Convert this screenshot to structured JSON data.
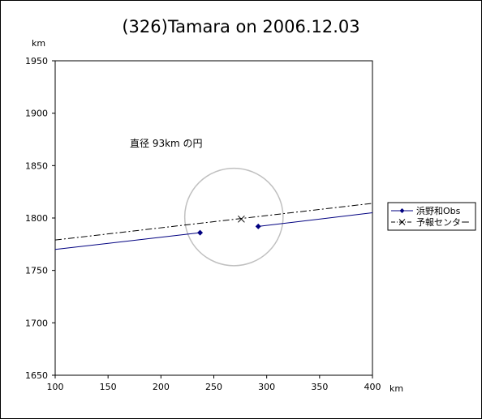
{
  "chart_data": {
    "type": "line",
    "title": "(326)Tamara on 2006.12.03",
    "xlabel": "km",
    "ylabel": "km",
    "xlim": [
      100,
      400
    ],
    "ylim": [
      1650,
      1950
    ],
    "x_ticks": [
      100,
      150,
      200,
      250,
      300,
      350,
      400
    ],
    "y_ticks": [
      1650,
      1700,
      1750,
      1800,
      1850,
      1900,
      1950
    ],
    "grid": false,
    "legend_position": "right",
    "series": [
      {
        "name": "浜野和Obs",
        "color": "#000080",
        "style": "solid",
        "segments": [
          [
            [
              100,
              1770
            ],
            [
              237,
              1786
            ]
          ],
          [
            [
              292,
              1792
            ],
            [
              400,
              1805
            ]
          ]
        ],
        "markers": [
          [
            237,
            1786
          ],
          [
            292,
            1792
          ]
        ]
      },
      {
        "name": "予報センター",
        "color": "#000000",
        "style": "dashdot",
        "segments": [
          [
            [
              100,
              1779
            ],
            [
              400,
              1814
            ]
          ]
        ],
        "markers": [
          [
            276,
            1799
          ]
        ]
      }
    ],
    "circle": {
      "cx": 269,
      "cy": 1801,
      "r": 46.5,
      "color": "#c0c0c0"
    },
    "annotation": "直径 93km の円"
  }
}
